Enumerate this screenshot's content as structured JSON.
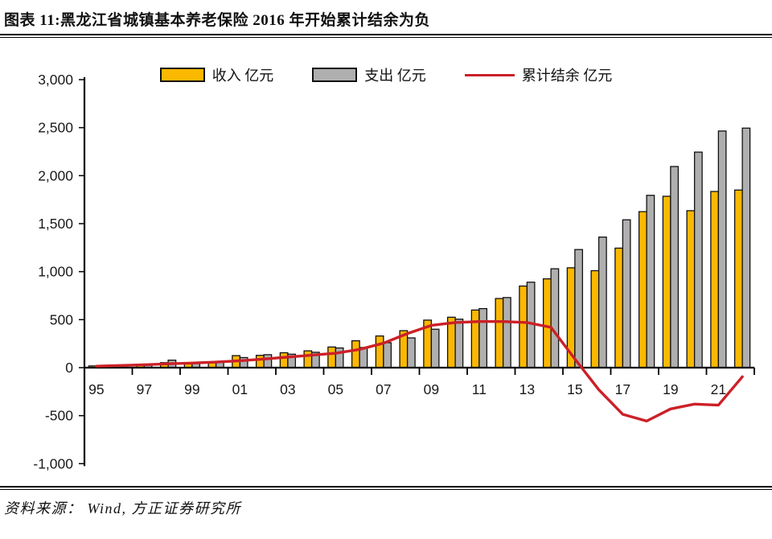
{
  "header": {
    "title": "图表 11:黑龙江省城镇基本养老保险 2016 年开始累计结余为负"
  },
  "footer": {
    "source": "资料来源： Wind, 方正证券研究所"
  },
  "chart_data": {
    "type": "bar",
    "title": "黑龙江省城镇基本养老保险 2016 年开始累计结余为负",
    "xlabel": "",
    "ylabel": "亿元",
    "ylim": [
      -1000,
      3000
    ],
    "ytick_step": 500,
    "grid": false,
    "legend_position": "top",
    "categories": [
      "1995",
      "1996",
      "1997",
      "1998",
      "1999",
      "2000",
      "2001",
      "2002",
      "2003",
      "2004",
      "2005",
      "2006",
      "2007",
      "2008",
      "2009",
      "2010",
      "2011",
      "2012",
      "2013",
      "2014",
      "2015",
      "2016",
      "2017",
      "2018",
      "2019",
      "2020",
      "2021",
      "2022"
    ],
    "x_tick_labels": [
      "95",
      "97",
      "99",
      "01",
      "03",
      "05",
      "07",
      "09",
      "11",
      "13",
      "15",
      "17",
      "19",
      "21"
    ],
    "series": [
      {
        "name": "收入 亿元",
        "type": "bar",
        "color": "#fbb800",
        "values": [
          18,
          25,
          30,
          52,
          40,
          52,
          125,
          128,
          155,
          175,
          215,
          280,
          330,
          385,
          495,
          525,
          600,
          720,
          850,
          925,
          1040,
          1010,
          1245,
          1625,
          1785,
          1635,
          1835,
          1850
        ]
      },
      {
        "name": "支出 亿元",
        "type": "bar",
        "color": "#afafaf",
        "values": [
          22,
          28,
          33,
          78,
          46,
          58,
          105,
          135,
          140,
          160,
          205,
          210,
          260,
          310,
          400,
          505,
          615,
          730,
          890,
          1030,
          1230,
          1360,
          1540,
          1795,
          2095,
          2245,
          2465,
          2495
        ]
      },
      {
        "name": "累计结余 亿元",
        "type": "line",
        "color": "#cc2027",
        "values": [
          15,
          22,
          30,
          40,
          48,
          58,
          72,
          90,
          110,
          130,
          150,
          190,
          255,
          355,
          440,
          470,
          480,
          480,
          470,
          420,
          90,
          -230,
          -486,
          -556,
          -430,
          -380,
          -390,
          -95
        ]
      }
    ],
    "axis_color": "#000000",
    "tick_label_color": "#1a1a1a"
  }
}
